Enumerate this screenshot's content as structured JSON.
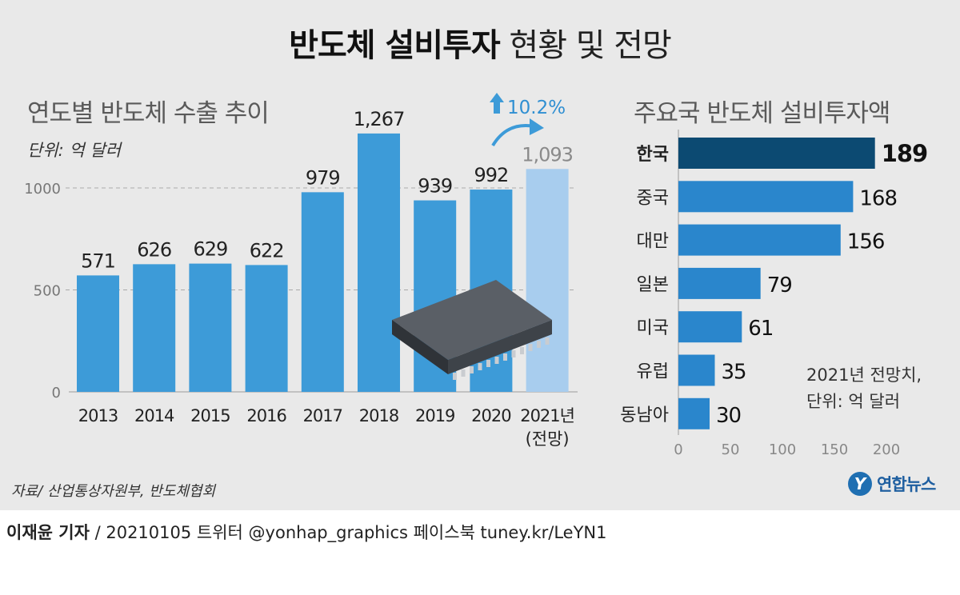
{
  "title": {
    "bold": "반도체 설비투자",
    "light": "현황 및 전망"
  },
  "left_subtitle": "연도별 반도체 수출 추이",
  "left_unit": "단위: 억 달러",
  "right_subtitle": "주요국 반도체 설비투자액",
  "right_note_line1": "2021년 전망치,",
  "right_note_line2": "단위: 억 달러",
  "growth_label": "10.2%",
  "source": "자료/ 산업통상자원부, 반도체협회",
  "logo_mark": "Y",
  "logo_text": "연합뉴스",
  "footer": {
    "reporter": "이재윤 기자",
    "rest": " / 20210105   트위터 @yonhap_graphics  페이스북 tuney.kr/LeYN1"
  },
  "colors": {
    "bar": "#3d9bd8",
    "bar_forecast": "#a8cdee",
    "bar_highlight": "#0c4a72",
    "hbar": "#2a86cc",
    "arrow": "#3d9bd8",
    "panel": "#e9e9e9"
  },
  "chart_data": [
    {
      "type": "bar",
      "title": "연도별 반도체 수출 추이",
      "unit": "단위: 억 달러",
      "categories": [
        "2013",
        "2014",
        "2015",
        "2016",
        "2017",
        "2018",
        "2019",
        "2020",
        "2021년"
      ],
      "category_notes": [
        "",
        "",
        "",
        "",
        "",
        "",
        "",
        "",
        "(전망)"
      ],
      "values": [
        571,
        626,
        629,
        622,
        979,
        1267,
        939,
        992,
        1093
      ],
      "value_labels": [
        "571",
        "626",
        "629",
        "622",
        "979",
        "1,267",
        "939",
        "992",
        "1,093"
      ],
      "forecast_index": 8,
      "ylim": [
        0,
        1000
      ],
      "yticks": [
        0,
        500,
        1000
      ],
      "grid": true,
      "annotation": "10.2%"
    },
    {
      "type": "bar",
      "orientation": "horizontal",
      "title": "주요국 반도체 설비투자액",
      "unit": "2021년 전망치, 단위: 억 달러",
      "categories": [
        "한국",
        "중국",
        "대만",
        "일본",
        "미국",
        "유럽",
        "동남아"
      ],
      "values": [
        189,
        168,
        156,
        79,
        61,
        35,
        30
      ],
      "highlight_index": 0,
      "xlim": [
        0,
        200
      ],
      "xticks": [
        0,
        50,
        100,
        150,
        200
      ],
      "grid": false
    }
  ]
}
